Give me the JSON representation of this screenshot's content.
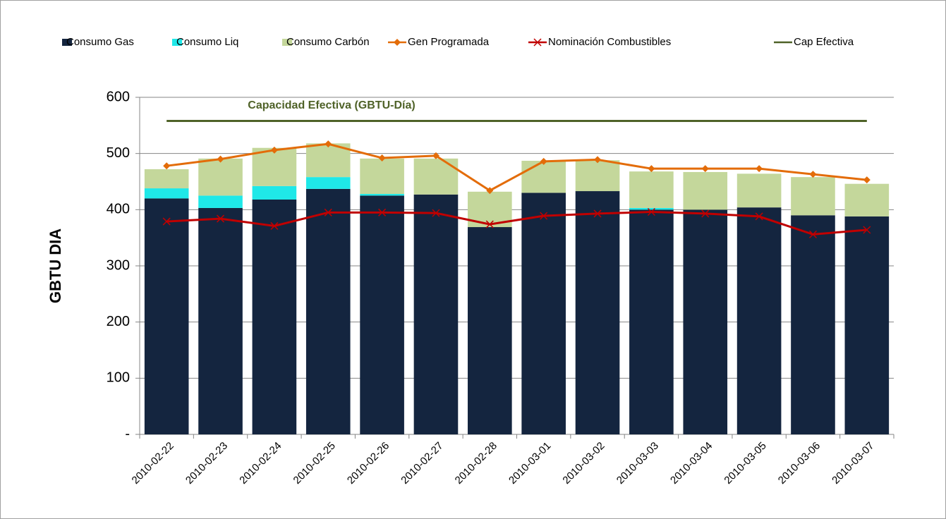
{
  "chart_data": {
    "type": "bar",
    "stacked": true,
    "y_label": "GBTU  DIA",
    "annotation": "Capacidad Efectiva (GBTU-Día)",
    "categories": [
      "2010-02-22",
      "2010-02-23",
      "2010-02-24",
      "2010-02-25",
      "2010-02-26",
      "2010-02-27",
      "2010-02-28",
      "2010-03-01",
      "2010-03-02",
      "2010-03-03",
      "2010-03-04",
      "2010-03-05",
      "2010-03-06",
      "2010-03-07"
    ],
    "series": [
      {
        "name": "Consumo Gas",
        "type": "bar",
        "color": "#14253f",
        "values": [
          420,
          403,
          418,
          437,
          425,
          427,
          369,
          430,
          433,
          400,
          400,
          404,
          390,
          388
        ]
      },
      {
        "name": "Consumo Liq",
        "type": "bar",
        "color": "#1fe8e8",
        "values": [
          18,
          22,
          24,
          21,
          3,
          0,
          0,
          0,
          0,
          3,
          0,
          0,
          0,
          0
        ]
      },
      {
        "name": "Consumo Carbón",
        "type": "bar",
        "color": "#c4d79b",
        "values": [
          34,
          66,
          68,
          60,
          63,
          64,
          63,
          57,
          55,
          65,
          67,
          60,
          68,
          58
        ]
      },
      {
        "name": "Gen Programada",
        "type": "line",
        "marker": "diamond",
        "color": "#e36c09",
        "values": [
          478,
          490,
          506,
          517,
          492,
          496,
          434,
          486,
          489,
          473,
          473,
          473,
          463,
          453
        ]
      },
      {
        "name": "Nominación Combustibles",
        "type": "line",
        "marker": "x",
        "color": "#c00000",
        "values": [
          379,
          384,
          371,
          395,
          395,
          394,
          374,
          389,
          393,
          396,
          393,
          388,
          356,
          364
        ]
      },
      {
        "name": "Cap Efectiva",
        "type": "line",
        "marker": "none",
        "color": "#4f6228",
        "values": [
          558,
          558,
          558,
          558,
          558,
          558,
          558,
          558,
          558,
          558,
          558,
          558,
          558,
          558
        ]
      }
    ],
    "ylim": [
      0,
      600
    ],
    "yticks": [
      {
        "value": 0,
        "label": "-"
      },
      100,
      200,
      300,
      400,
      500,
      600
    ],
    "grid": true,
    "legend": "top"
  }
}
